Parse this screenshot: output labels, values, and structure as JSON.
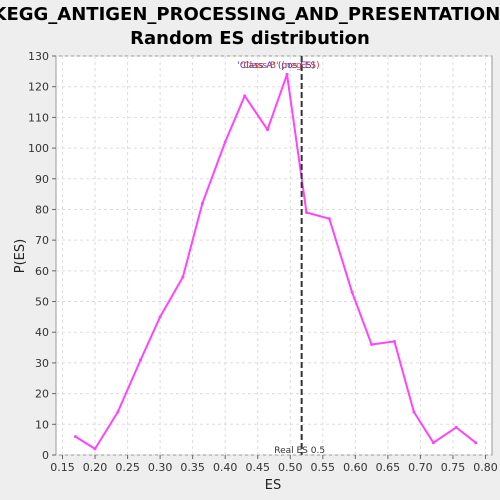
{
  "chart_data": {
    "type": "line",
    "title": "KEGG_ANTIGEN_PROCESSING_AND_PRESENTATION:",
    "subtitle": "Random ES distribution",
    "xlabel": "ES",
    "ylabel": "P(ES)",
    "xlim": [
      0.14,
      0.81
    ],
    "ylim": [
      0,
      130
    ],
    "x_ticks": [
      "0.15",
      "0.20",
      "0.25",
      "0.30",
      "0.35",
      "0.40",
      "0.45",
      "0.50",
      "0.55",
      "0.60",
      "0.65",
      "0.70",
      "0.75",
      "0.80"
    ],
    "y_ticks": [
      "0",
      "10",
      "20",
      "30",
      "40",
      "50",
      "60",
      "70",
      "80",
      "90",
      "100",
      "110",
      "120",
      "130"
    ],
    "grid": true,
    "series": [
      {
        "color": "#ff44ff",
        "x": [
          0.17,
          0.2,
          0.235,
          0.27,
          0.3,
          0.335,
          0.365,
          0.4,
          0.43,
          0.465,
          0.495,
          0.525,
          0.56,
          0.595,
          0.625,
          0.66,
          0.69,
          0.72,
          0.755,
          0.785
        ],
        "y": [
          6,
          2,
          14,
          31,
          45,
          58,
          82,
          102,
          117,
          106,
          124,
          79,
          77,
          53,
          36,
          37,
          14,
          4,
          9,
          4
        ]
      }
    ],
    "real_es": 0.5175,
    "real_es_label": "Real ES 0.5",
    "annotations": [
      {
        "text": "'Class A' (pos ES)",
        "color": "#3333cc",
        "x": 0.5
      },
      {
        "text": "'Class B' (neg ES)",
        "color": "#cc3333",
        "x": 0.5
      }
    ]
  }
}
